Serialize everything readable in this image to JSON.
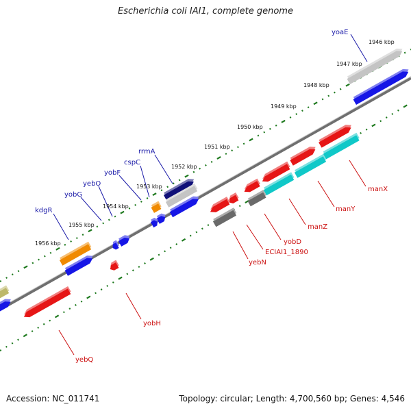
{
  "header": {
    "title": "Escherichia coli IAI1, complete genome"
  },
  "footer": {
    "accession": "Accession: NC_011741",
    "topology": "Topology: circular; Length: 4,700,560 bp; Genes: 4,546"
  },
  "colors": {
    "backbone": "#6f6f6f",
    "tick": "#1f7a1f",
    "label_top": "#1a1aa8",
    "label_bottom": "#cc1111",
    "gene_blue": "#1616e6",
    "gene_red": "#e61616",
    "gene_orange": "#f08a00",
    "gene_cyan": "#10c8c8",
    "gene_gray": "#6a6a6a",
    "gene_navy": "#101078",
    "gene_lightgray": "#c4c4c4",
    "gene_khaki": "#bdb86c"
  },
  "scale": {
    "labels": [
      "1946 kbp",
      "1947 kbp",
      "1948 kbp",
      "1949 kbp",
      "1950 kbp",
      "1951 kbp",
      "1952 kbp",
      "1953 kbp",
      "1954 kbp",
      "1955 kbp",
      "1956 kbp"
    ]
  },
  "genes_top": [
    "yoaE",
    "rrmA",
    "cspC",
    "yobF",
    "yebO",
    "yobG",
    "kdgR"
  ],
  "genes_bottom": [
    "manX",
    "manY",
    "manZ",
    "yobD",
    "ECIAI1_1890",
    "yebN",
    "yobH",
    "yebQ"
  ]
}
